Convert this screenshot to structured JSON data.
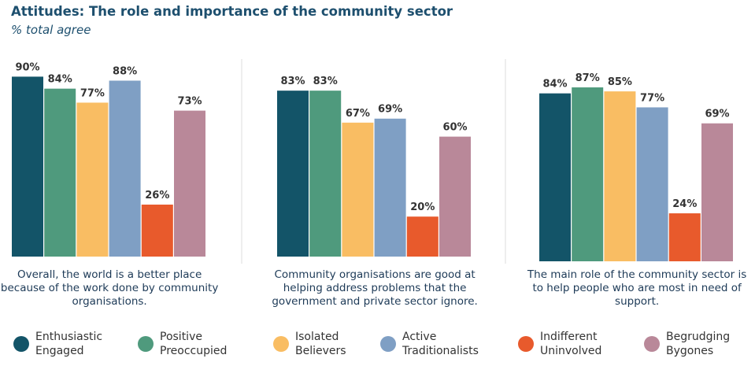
{
  "chart_data": {
    "type": "bar",
    "title": "Attitudes: The role and importance of the community sector",
    "subtitle": "% total agree",
    "categories": [
      "Overall, the world is a better place because of the work done by community organisations.",
      "Community organisations are good at helping address problems that the government and private sector ignore.",
      "The main role of the community sector is to help people who are most in need of support."
    ],
    "series": [
      {
        "name": "Enthusiastic Engaged",
        "color": "#135468",
        "values": [
          90,
          83,
          84
        ],
        "value_labels": [
          "90%",
          "83%",
          "84%"
        ]
      },
      {
        "name": "Positive Preoccupied",
        "color": "#4f9a7d",
        "values": [
          84,
          83,
          87
        ],
        "value_labels": [
          "84%",
          "83%",
          "87%"
        ]
      },
      {
        "name": "Isolated Believers",
        "color": "#f9bd63",
        "values": [
          77,
          67,
          85
        ],
        "value_labels": [
          "77%",
          "67%",
          "85%"
        ]
      },
      {
        "name": "Active Traditionalists",
        "color": "#7f9fc4",
        "values": [
          88,
          69,
          77
        ],
        "value_labels": [
          "88%",
          "69%",
          "77%"
        ]
      },
      {
        "name": "Indifferent Uninvolved",
        "color": "#e85a2c",
        "values": [
          26,
          20,
          24
        ],
        "value_labels": [
          "26%",
          "20%",
          "24%"
        ]
      },
      {
        "name": "Begrudging Bygones",
        "color": "#b98899",
        "values": [
          73,
          60,
          69
        ],
        "value_labels": [
          "73%",
          "60%",
          "69%"
        ]
      }
    ]
  }
}
